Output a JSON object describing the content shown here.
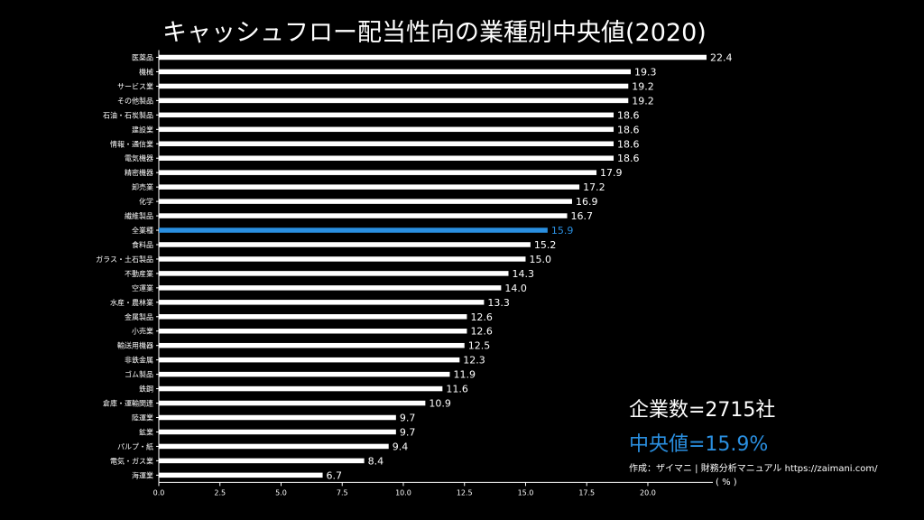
{
  "chart_data": {
    "type": "bar",
    "orientation": "horizontal",
    "title": "キャッシュフロー配当性向の業種別中央値(2020)",
    "categories": [
      "医薬品",
      "機械",
      "サービス業",
      "その他製品",
      "石油・石炭製品",
      "建設業",
      "情報・通信業",
      "電気機器",
      "精密機器",
      "卸売業",
      "化学",
      "繊維製品",
      "全業種",
      "食料品",
      "ガラス・土石製品",
      "不動産業",
      "空運業",
      "水産・農林業",
      "金属製品",
      "小売業",
      "輸送用機器",
      "非鉄金属",
      "ゴム製品",
      "鉄鋼",
      "倉庫・運輸関連",
      "陸運業",
      "鉱業",
      "パルプ・紙",
      "電気・ガス業",
      "海運業"
    ],
    "values": [
      22.4,
      19.3,
      19.2,
      19.2,
      18.6,
      18.6,
      18.6,
      18.6,
      17.9,
      17.2,
      16.9,
      16.7,
      15.9,
      15.2,
      15.0,
      14.3,
      14.0,
      13.3,
      12.6,
      12.6,
      12.5,
      12.3,
      11.9,
      11.6,
      10.9,
      9.7,
      9.7,
      9.4,
      8.4,
      6.7
    ],
    "value_labels": [
      "22.4",
      "19.3",
      "19.2",
      "19.2",
      "18.6",
      "18.6",
      "18.6",
      "18.6",
      "17.9",
      "17.2",
      "16.9",
      "16.7",
      "15.9",
      "15.2",
      "15.0",
      "14.3",
      "14.0",
      "13.3",
      "12.6",
      "12.6",
      "12.5",
      "12.3",
      "11.9",
      "11.6",
      "10.9",
      "9.7",
      "9.7",
      "9.4",
      "8.4",
      "6.7"
    ],
    "highlight_category": "全業種",
    "xlim": [
      0,
      22.4
    ],
    "xticks": [
      "0.0",
      "2.5",
      "5.0",
      "7.5",
      "10.0",
      "12.5",
      "15.0",
      "17.5",
      "20.0"
    ],
    "xlabel": "( % )",
    "grid": false,
    "colors": {
      "bar": "#ffffff",
      "highlight": "#2a8fe0",
      "background": "#000000",
      "text": "#ffffff"
    }
  },
  "info": {
    "company_count": "企業数=2715社",
    "median": "中央値=15.9%",
    "credit": "作成：ザイマニ | 財務分析マニュアル https://zaimani.com/"
  }
}
